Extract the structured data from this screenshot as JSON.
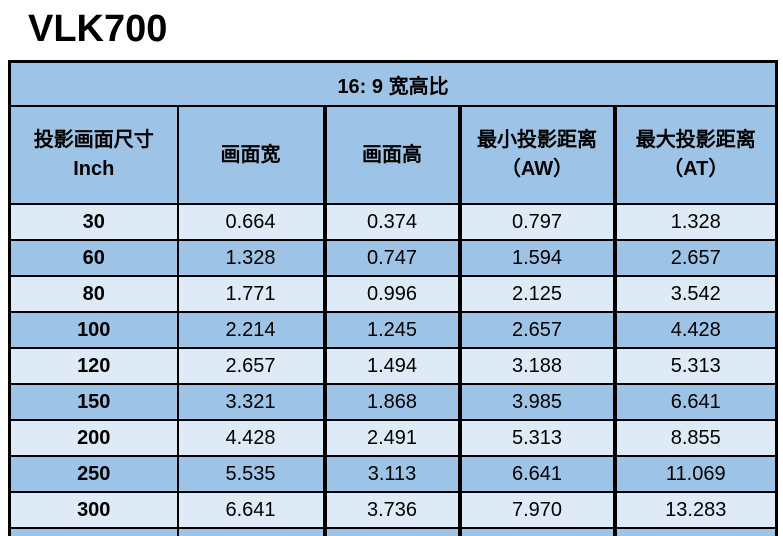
{
  "page_title": "VLK700",
  "table": {
    "title": "16: 9 宽高比",
    "columns": [
      {
        "line1": "投影画面尺寸",
        "line2": "Inch"
      },
      {
        "line1": "画面宽",
        "line2": ""
      },
      {
        "line1": "画面高",
        "line2": ""
      },
      {
        "line1": "最小投影距离",
        "line2": "（AW）"
      },
      {
        "line1": "最大投影距离",
        "line2": "（AT）"
      }
    ],
    "rows": [
      {
        "size": "30",
        "width": "0.664",
        "height": "0.374",
        "min_distance": "0.797",
        "max_distance": "1.328"
      },
      {
        "size": "60",
        "width": "1.328",
        "height": "0.747",
        "min_distance": "1.594",
        "max_distance": "2.657"
      },
      {
        "size": "80",
        "width": "1.771",
        "height": "0.996",
        "min_distance": "2.125",
        "max_distance": "3.542"
      },
      {
        "size": "100",
        "width": "2.214",
        "height": "1.245",
        "min_distance": "2.657",
        "max_distance": "4.428"
      },
      {
        "size": "120",
        "width": "2.657",
        "height": "1.494",
        "min_distance": "3.188",
        "max_distance": "5.313"
      },
      {
        "size": "150",
        "width": "3.321",
        "height": "1.868",
        "min_distance": "3.985",
        "max_distance": "6.641"
      },
      {
        "size": "200",
        "width": "4.428",
        "height": "2.491",
        "min_distance": "5.313",
        "max_distance": "8.855"
      },
      {
        "size": "250",
        "width": "5.535",
        "height": "3.113",
        "min_distance": "6.641",
        "max_distance": "11.069"
      },
      {
        "size": "300",
        "width": "6.641",
        "height": "3.736",
        "min_distance": "7.970",
        "max_distance": "13.283"
      }
    ],
    "row_shading_pattern": [
      "light",
      "dark"
    ],
    "colors": {
      "header_blue": "#9DC3E6",
      "row_light_blue": "#DEEBF7",
      "border_black": "#000000",
      "double_line_gap": "#E7F0F9",
      "text": "#000000"
    }
  }
}
